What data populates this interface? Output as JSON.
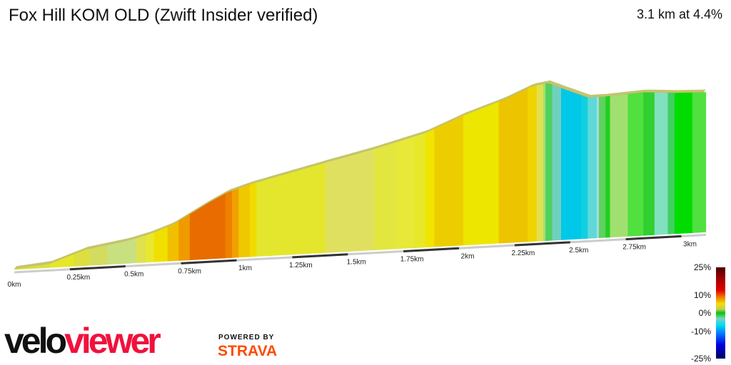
{
  "header": {
    "title": "Fox Hill KOM OLD (Zwift Insider verified)",
    "summary": "3.1 km at 4.4%"
  },
  "chart_data": {
    "type": "area",
    "title": "Fox Hill KOM OLD (Zwift Insider verified)",
    "xlabel": "",
    "ylabel": "",
    "x_ticks": [
      "0km",
      "0.25km",
      "0.5km",
      "0.75km",
      "1km",
      "1.25km",
      "1.5km",
      "1.75km",
      "2km",
      "2.25km",
      "2.5km",
      "2.75km",
      "3km"
    ],
    "xlim": [
      0,
      3.11
    ],
    "profile": {
      "km": [
        0,
        0.16,
        0.32,
        0.51,
        0.61,
        0.71,
        0.79,
        0.87,
        0.96,
        1.06,
        1.4,
        1.62,
        1.85,
        2.02,
        2.2,
        2.33,
        2.4,
        2.47,
        2.58,
        2.65,
        2.83,
        2.97,
        3.11
      ],
      "elevation_m": [
        3,
        6,
        17,
        23,
        28,
        35,
        44,
        53,
        62,
        68,
        84,
        94,
        106,
        120,
        132,
        143,
        145,
        139,
        130,
        130,
        132,
        130,
        129
      ]
    },
    "gradient_bands": [
      [
        0,
        0.16,
        "#d8e040"
      ],
      [
        0.16,
        0.27,
        "#e6e62a"
      ],
      [
        0.27,
        0.34,
        "#dede40"
      ],
      [
        0.34,
        0.42,
        "#d4dc60"
      ],
      [
        0.42,
        0.55,
        "#c8e080"
      ],
      [
        0.55,
        0.59,
        "#e0e050"
      ],
      [
        0.59,
        0.63,
        "#e8e830"
      ],
      [
        0.63,
        0.69,
        "#f0e000"
      ],
      [
        0.69,
        0.74,
        "#f0c000"
      ],
      [
        0.74,
        0.79,
        "#f09a00"
      ],
      [
        0.79,
        0.95,
        "#e86c00"
      ],
      [
        0.95,
        0.98,
        "#f08000"
      ],
      [
        0.98,
        1.01,
        "#f0a000"
      ],
      [
        1.01,
        1.06,
        "#f0c800"
      ],
      [
        1.06,
        1.09,
        "#f0dc00"
      ],
      [
        1.09,
        1.4,
        "#e4e62e"
      ],
      [
        1.4,
        1.62,
        "#e0e060"
      ],
      [
        1.62,
        1.72,
        "#e4e640"
      ],
      [
        1.72,
        1.8,
        "#e8e838"
      ],
      [
        1.8,
        1.85,
        "#e8e82a"
      ],
      [
        1.85,
        1.89,
        "#f0e400"
      ],
      [
        1.89,
        2.02,
        "#ecce00"
      ],
      [
        2.02,
        2.18,
        "#ece600"
      ],
      [
        2.18,
        2.31,
        "#ecc400"
      ],
      [
        2.31,
        2.35,
        "#f0d400"
      ],
      [
        2.35,
        2.38,
        "#e0e050"
      ],
      [
        2.38,
        2.39,
        "#a0e070"
      ],
      [
        2.39,
        2.42,
        "#50d060"
      ],
      [
        2.42,
        2.46,
        "#70d0c0"
      ],
      [
        2.46,
        2.55,
        "#00c8e8"
      ],
      [
        2.55,
        2.58,
        "#10d0e0"
      ],
      [
        2.58,
        2.62,
        "#60d8d8"
      ],
      [
        2.62,
        2.63,
        "#a0e0e0"
      ],
      [
        2.63,
        2.66,
        "#60d060"
      ],
      [
        2.66,
        2.68,
        "#20d020"
      ],
      [
        2.68,
        2.76,
        "#a0e070"
      ],
      [
        2.76,
        2.83,
        "#50e040"
      ],
      [
        2.83,
        2.88,
        "#30d030"
      ],
      [
        2.88,
        2.94,
        "#80e0c0"
      ],
      [
        2.94,
        2.97,
        "#40d060"
      ],
      [
        2.97,
        3.05,
        "#00dc00"
      ],
      [
        3.05,
        3.11,
        "#50e040"
      ]
    ],
    "legend": {
      "labels": [
        "25%",
        "10%",
        "0%",
        "-10%",
        "-25%"
      ],
      "placement": "bottom-right"
    }
  },
  "branding": {
    "velo": "velo",
    "viewer": "viewer",
    "powered_by": "POWERED BY",
    "strava": "STRAVA"
  }
}
